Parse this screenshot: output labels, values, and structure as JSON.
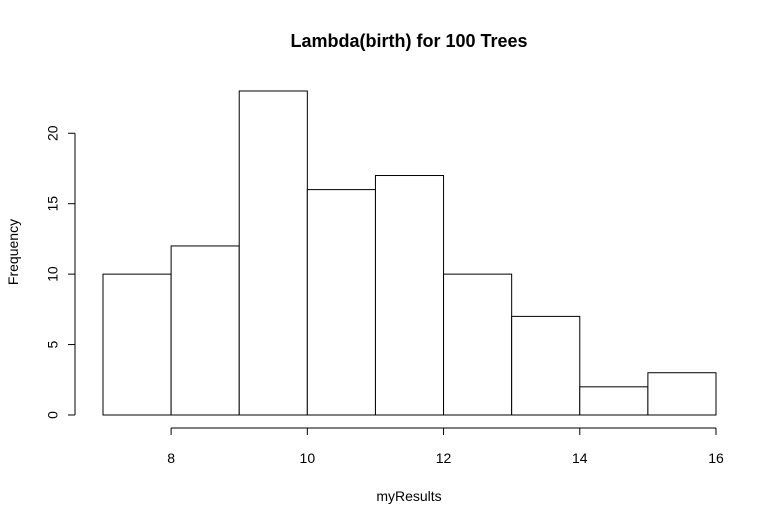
{
  "chart_data": {
    "type": "bar",
    "title": "Lambda(birth) for 100 Trees",
    "xlabel": "myResults",
    "ylabel": "Frequency",
    "bins": [
      {
        "start": 7,
        "end": 8,
        "count": 10
      },
      {
        "start": 8,
        "end": 9,
        "count": 12
      },
      {
        "start": 9,
        "end": 10,
        "count": 23
      },
      {
        "start": 10,
        "end": 11,
        "count": 16
      },
      {
        "start": 11,
        "end": 12,
        "count": 17
      },
      {
        "start": 12,
        "end": 13,
        "count": 10
      },
      {
        "start": 13,
        "end": 14,
        "count": 7
      },
      {
        "start": 14,
        "end": 15,
        "count": 2
      },
      {
        "start": 15,
        "end": 16,
        "count": 3
      }
    ],
    "xlim": [
      7,
      16
    ],
    "ylim": [
      0,
      23
    ],
    "x_ticks": [
      8,
      10,
      12,
      14,
      16
    ],
    "y_ticks": [
      0,
      5,
      10,
      15,
      20
    ],
    "grid": false,
    "legend": "none"
  }
}
